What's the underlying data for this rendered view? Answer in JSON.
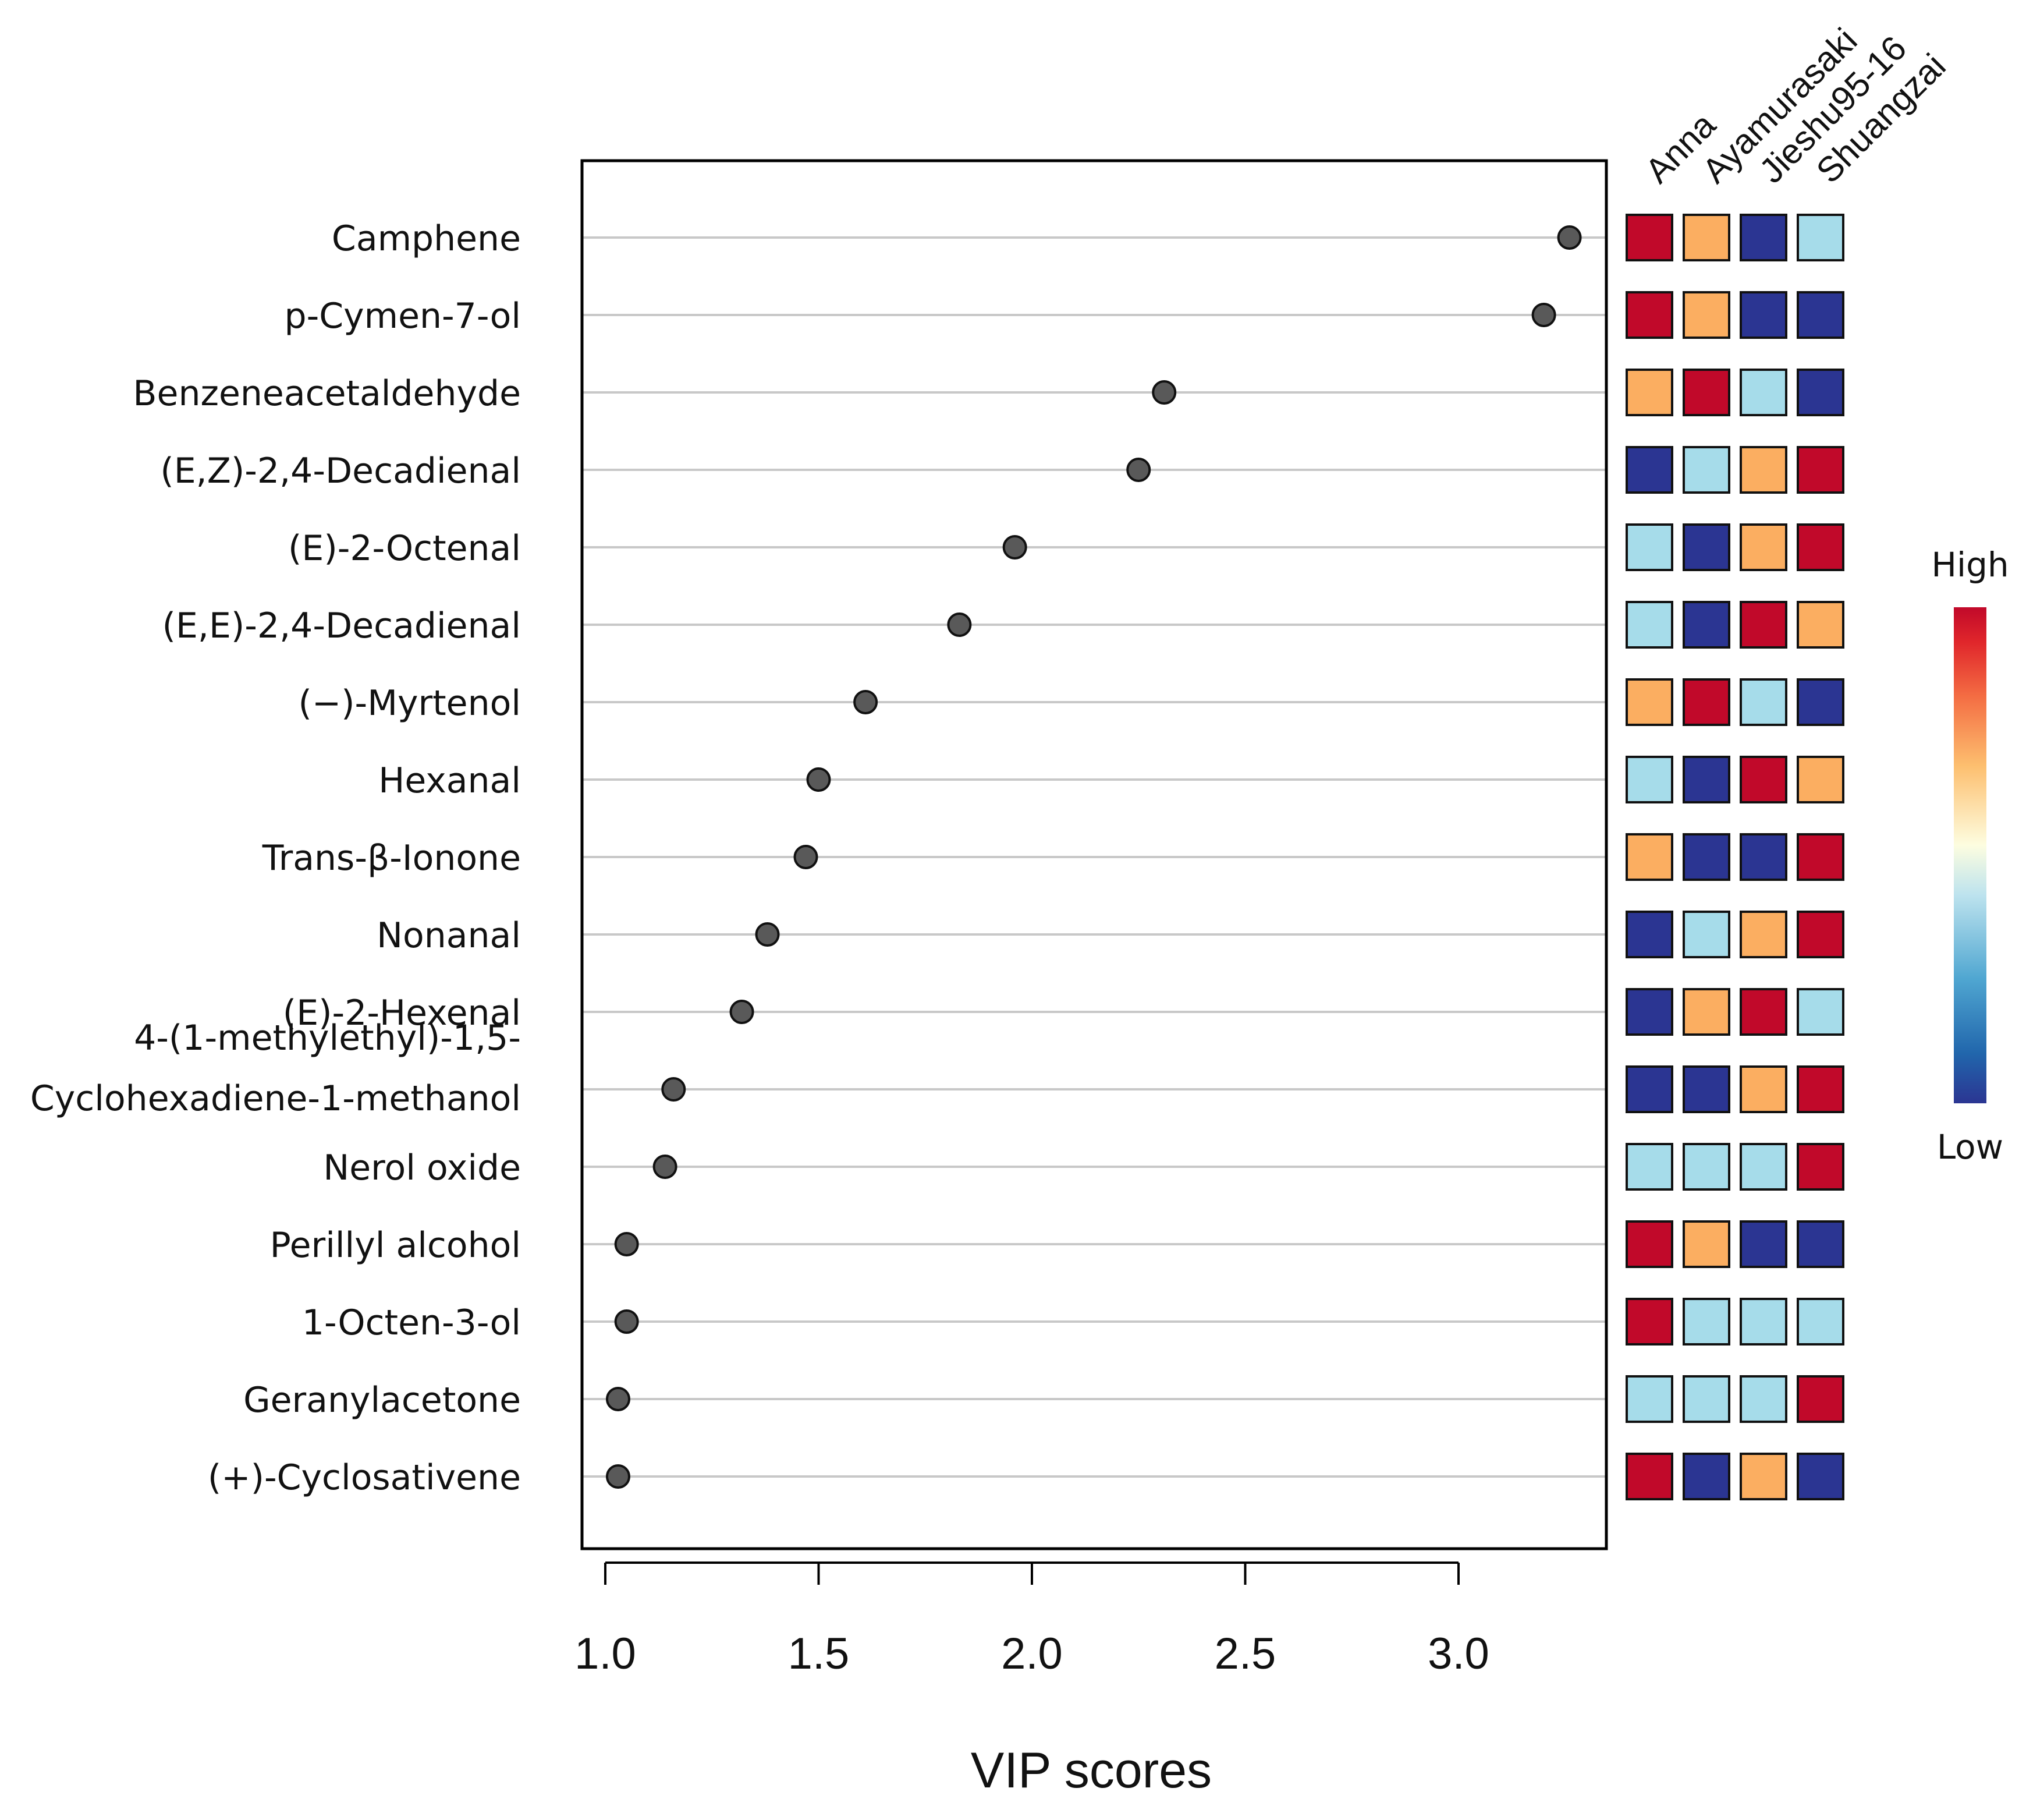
{
  "chart_data": {
    "type": "scatter",
    "subtype": "vip-dot-plot-with-heatmap",
    "xlabel": "VIP scores",
    "ylabel": "",
    "xlim": [
      0.95,
      3.35
    ],
    "xticks": [
      1.0,
      1.5,
      2.0,
      2.5,
      3.0
    ],
    "xtick_labels": [
      "1.0",
      "1.5",
      "2.0",
      "2.5",
      "3.0"
    ],
    "grid": "horizontal",
    "compounds": [
      {
        "name": "Camphene",
        "vip": 3.26,
        "levels": [
          "high",
          "medium",
          "low",
          "mid-low"
        ]
      },
      {
        "name": "p-Cymen-7-ol",
        "vip": 3.2,
        "levels": [
          "high",
          "medium",
          "low",
          "low"
        ]
      },
      {
        "name": "Benzeneacetaldehyde",
        "vip": 2.31,
        "levels": [
          "medium",
          "high",
          "mid-low",
          "low"
        ]
      },
      {
        "name": "(E,Z)-2,4-Decadienal",
        "vip": 2.25,
        "levels": [
          "low",
          "mid-low",
          "medium",
          "high"
        ]
      },
      {
        "name": "(E)-2-Octenal",
        "vip": 1.96,
        "levels": [
          "mid-low",
          "low",
          "medium",
          "high"
        ]
      },
      {
        "name": "(E,E)-2,4-Decadienal",
        "vip": 1.83,
        "levels": [
          "mid-low",
          "low",
          "high",
          "medium"
        ]
      },
      {
        "name": "(−)-Myrtenol",
        "vip": 1.61,
        "levels": [
          "medium",
          "high",
          "mid-low",
          "low"
        ]
      },
      {
        "name": "Hexanal",
        "vip": 1.5,
        "levels": [
          "mid-low",
          "low",
          "high",
          "medium"
        ]
      },
      {
        "name": "Trans-β-Ionone",
        "vip": 1.47,
        "levels": [
          "medium",
          "low",
          "low",
          "high"
        ]
      },
      {
        "name": "Nonanal",
        "vip": 1.38,
        "levels": [
          "low",
          "mid-low",
          "medium",
          "high"
        ]
      },
      {
        "name": "(E)-2-Hexenal",
        "vip": 1.32,
        "levels": [
          "low",
          "medium",
          "high",
          "mid-low"
        ]
      },
      {
        "name": "4-(1-methylethyl)-1,5-Cyclohexadiene-1-methanol",
        "label_lines": [
          "4-(1-methylethyl)-1,5-",
          "Cyclohexadiene-1-methanol"
        ],
        "vip": 1.16,
        "levels": [
          "low",
          "low",
          "medium",
          "high"
        ]
      },
      {
        "name": "Nerol oxide",
        "vip": 1.14,
        "levels": [
          "mid-low",
          "mid-low",
          "mid-low",
          "high"
        ]
      },
      {
        "name": "Perillyl alcohol",
        "vip": 1.05,
        "levels": [
          "high",
          "medium",
          "low",
          "low"
        ]
      },
      {
        "name": "1-Octen-3-ol",
        "vip": 1.05,
        "levels": [
          "high",
          "mid-low",
          "mid-low",
          "mid-low"
        ]
      },
      {
        "name": "Geranylacetone",
        "vip": 1.03,
        "levels": [
          "mid-low",
          "mid-low",
          "mid-low",
          "high"
        ]
      },
      {
        "name": "(+)-Cyclosativene",
        "vip": 1.03,
        "levels": [
          "high",
          "low",
          "medium",
          "low"
        ]
      }
    ],
    "heatmap_columns": [
      "Anna",
      "Ayamurasaki",
      "Jieshu95-16",
      "Shuangzai"
    ],
    "level_colors": {
      "high": "#c1092a",
      "medium": "#fbae61",
      "mid-low": "#a6dcea",
      "low": "#2b3592"
    },
    "legend": {
      "high_label": "High",
      "low_label": "Low",
      "placement": "right"
    },
    "colors": {
      "dot": "#595959",
      "grid": "#c8c8c8",
      "frame": "#000000"
    }
  }
}
